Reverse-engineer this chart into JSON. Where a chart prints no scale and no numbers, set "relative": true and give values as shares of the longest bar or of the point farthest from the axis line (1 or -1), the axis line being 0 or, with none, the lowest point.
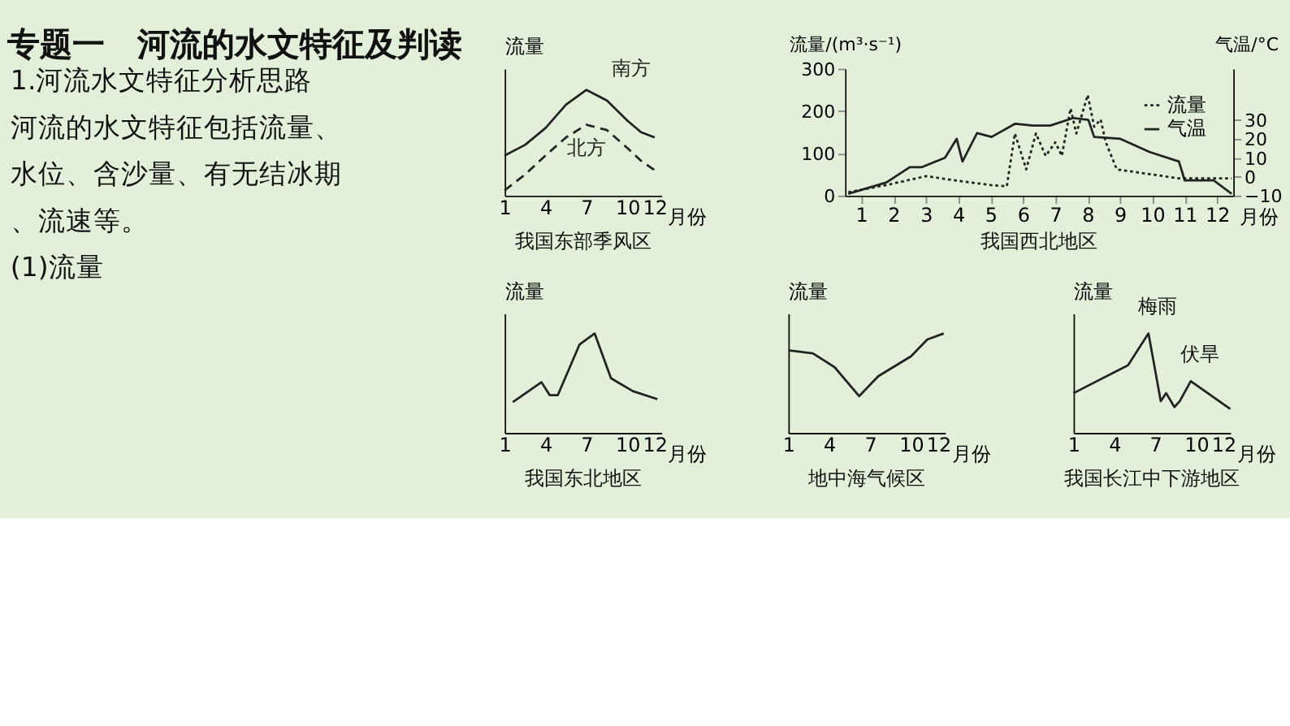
{
  "chart_data": [
    {
      "type": "other",
      "title": "专题一　河流的水文特征及判读",
      "annotations": [
        "1.河流水文特征分析思路",
        "河流的水文特征包括流量、水位、含沙量、有无结冰期、流速等。",
        "(1)流量"
      ]
    },
    {
      "type": "line",
      "relative": true,
      "title": "我国东部季风区",
      "ylabel": "流量",
      "xlabel": "月份",
      "xlim": [
        1,
        12.5
      ],
      "xticks": [
        1,
        4,
        7,
        10,
        12
      ],
      "series": [
        {
          "name": "南方",
          "color": "#222222",
          "line_style": "solid",
          "x": [
            1,
            2.5,
            4,
            5.5,
            7,
            8.5,
            10,
            11,
            12
          ],
          "values": [
            0.38,
            0.48,
            0.64,
            0.86,
            1,
            0.9,
            0.71,
            0.6,
            0.55
          ]
        },
        {
          "name": "北方",
          "color": "#222222",
          "line_style": "dashed",
          "x": [
            1,
            2.5,
            4,
            5.5,
            7,
            8.5,
            10,
            11,
            12
          ],
          "values": [
            0.05,
            0.2,
            0.38,
            0.55,
            0.67,
            0.62,
            0.45,
            0.33,
            0.24
          ]
        }
      ]
    },
    {
      "type": "line",
      "title": "我国西北地区",
      "ylabel": "流量/(m³·s⁻¹)",
      "y2label": "气温/°C",
      "xlabel": "月份",
      "xlim": [
        0.5,
        12.5
      ],
      "xticks": [
        1,
        2,
        3,
        4,
        5,
        6,
        7,
        8,
        9,
        10,
        11,
        12
      ],
      "ylim": [
        0,
        300
      ],
      "yticks": [
        0,
        100,
        200,
        300
      ],
      "y2lim": [
        -10,
        57
      ],
      "y2ticks": [
        -10,
        0,
        10,
        20,
        30
      ],
      "legend": "top right",
      "series": [
        {
          "name": "流量",
          "color": "#222222",
          "line_style": "dotted",
          "x": [
            0.6,
            1.78,
            3,
            4,
            5,
            5.5,
            5.75,
            6.1,
            6.4,
            6.7,
            7.0,
            7.2,
            7.47,
            7.65,
            8.0,
            8.2,
            8.4,
            8.56,
            8.9,
            9.9,
            10.8,
            12.45
          ],
          "values": [
            8,
            25,
            46,
            35,
            25,
            22,
            147,
            62,
            147,
            94,
            126,
            94,
            206,
            147,
            238,
            163,
            180,
            126,
            62,
            51,
            41,
            41
          ]
        },
        {
          "name": "气温",
          "color": "#222222",
          "line_style": "solid",
          "axis": "y2",
          "x": [
            0.6,
            1.78,
            2.5,
            2.86,
            3.59,
            3.95,
            4.13,
            4.58,
            5.03,
            5.76,
            6.3,
            6.84,
            7.56,
            8.02,
            8.2,
            9.01,
            9.92,
            10.82,
            11.0,
            11.9,
            12.45
          ],
          "values": [
            -9,
            -3,
            5,
            5,
            10,
            20,
            8,
            23,
            21,
            28,
            27,
            27,
            31,
            30,
            21,
            20,
            13,
            8,
            -2,
            -2,
            -9
          ]
        }
      ]
    },
    {
      "type": "line",
      "relative": true,
      "title": "我国东北地区",
      "ylabel": "流量",
      "xlabel": "月份",
      "xlim": [
        1,
        12.5
      ],
      "xticks": [
        1,
        4,
        7,
        10,
        12
      ],
      "series": [
        {
          "color": "#222222",
          "line_style": "solid",
          "x": [
            1.6,
            3.7,
            4.3,
            4.9,
            6.5,
            7.6,
            8.8,
            10.4,
            12.2
          ],
          "values": [
            0.31,
            0.51,
            0.38,
            0.38,
            0.89,
            1,
            0.55,
            0.42,
            0.34
          ]
        }
      ]
    },
    {
      "type": "line",
      "relative": true,
      "title": "地中海气候区",
      "ylabel": "流量",
      "xlabel": "月份",
      "xlim": [
        1,
        12.5
      ],
      "xticks": [
        1,
        4,
        7,
        10,
        12
      ],
      "series": [
        {
          "color": "#222222",
          "line_style": "solid",
          "x": [
            1,
            2.8,
            4.4,
            6.2,
            7.6,
            10,
            11.2,
            12.4
          ],
          "values": [
            0.83,
            0.8,
            0.66,
            0.37,
            0.57,
            0.77,
            0.94,
            1
          ]
        }
      ]
    },
    {
      "type": "line",
      "relative": true,
      "title": "我国长江中下游地区",
      "ylabel": "流量",
      "xlabel": "月份",
      "xlim": [
        1,
        12.5
      ],
      "xticks": [
        1,
        4,
        7,
        10,
        12
      ],
      "annotations": [
        {
          "text": "梅雨",
          "x": 6.5,
          "y": 1
        },
        {
          "text": "伏旱",
          "x": 9.6,
          "y": 0.52
        }
      ],
      "series": [
        {
          "color": "#222222",
          "line_style": "solid",
          "x": [
            1,
            5,
            6.5,
            7.4,
            7.8,
            8.4,
            8.8,
            9.6,
            12.5
          ],
          "values": [
            0.4,
            0.68,
            1,
            0.32,
            0.4,
            0.26,
            0.32,
            0.52,
            0.24
          ]
        }
      ]
    }
  ]
}
